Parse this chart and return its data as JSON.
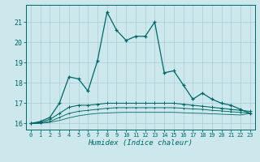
{
  "xlabel": "Humidex (Indice chaleur)",
  "background_color": "#cce8ec",
  "grid_color": "#aacdd4",
  "line_color": "#006666",
  "x_values": [
    0,
    1,
    2,
    3,
    4,
    5,
    6,
    7,
    8,
    9,
    10,
    11,
    12,
    13,
    14,
    15,
    16,
    17,
    18,
    19,
    20,
    21,
    22,
    23
  ],
  "series1": [
    16.0,
    16.1,
    16.3,
    17.0,
    18.3,
    18.2,
    17.6,
    19.1,
    21.5,
    20.6,
    20.1,
    20.3,
    20.3,
    21.0,
    18.5,
    18.6,
    17.9,
    17.2,
    17.5,
    17.2,
    17.0,
    16.9,
    16.7,
    16.5
  ],
  "series2": [
    16.0,
    16.05,
    16.2,
    16.5,
    16.8,
    16.9,
    16.9,
    16.95,
    17.0,
    17.0,
    17.0,
    17.0,
    17.0,
    17.0,
    17.0,
    17.0,
    16.95,
    16.9,
    16.85,
    16.8,
    16.75,
    16.7,
    16.65,
    16.6
  ],
  "series3": [
    16.0,
    16.02,
    16.1,
    16.3,
    16.5,
    16.6,
    16.65,
    16.7,
    16.75,
    16.78,
    16.78,
    16.78,
    16.78,
    16.78,
    16.78,
    16.78,
    16.75,
    16.72,
    16.7,
    16.65,
    16.62,
    16.58,
    16.55,
    16.52
  ],
  "series4": [
    16.0,
    16.01,
    16.06,
    16.15,
    16.28,
    16.38,
    16.45,
    16.5,
    16.52,
    16.54,
    16.55,
    16.55,
    16.55,
    16.55,
    16.55,
    16.55,
    16.53,
    16.51,
    16.5,
    16.48,
    16.46,
    16.44,
    16.42,
    16.5
  ],
  "ylim": [
    15.7,
    21.85
  ],
  "yticks": [
    16,
    17,
    18,
    19,
    20,
    21
  ],
  "xlim": [
    -0.5,
    23.5
  ],
  "xticks": [
    0,
    1,
    2,
    3,
    4,
    5,
    6,
    7,
    8,
    9,
    10,
    11,
    12,
    13,
    14,
    15,
    16,
    17,
    18,
    19,
    20,
    21,
    22,
    23
  ]
}
